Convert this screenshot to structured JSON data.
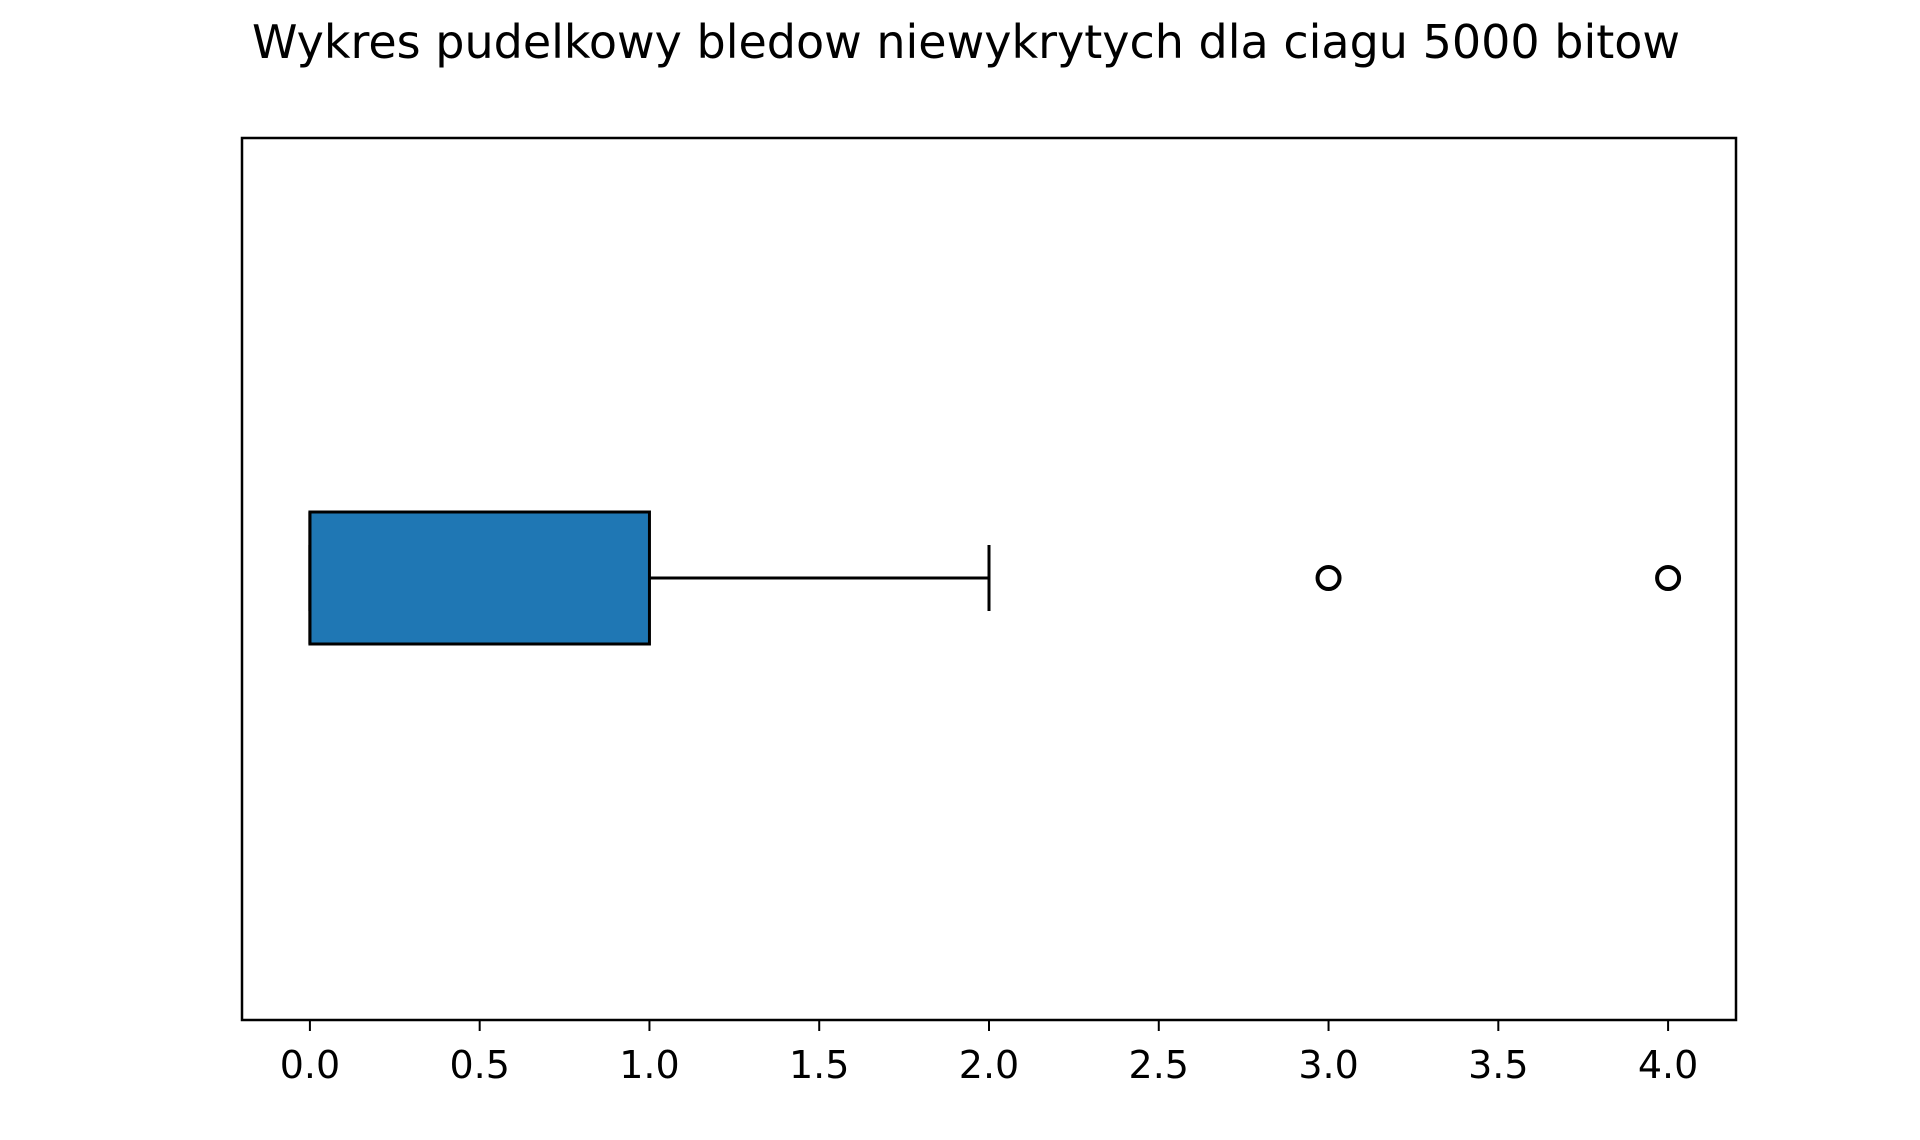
{
  "chart_data": {
    "type": "boxplot",
    "orientation": "horizontal",
    "title": "Wykres pudelkowy bledow niewykrytych dla ciagu 5000 bitow",
    "xlabel": "",
    "ylabel": "",
    "xlim": [
      -0.2,
      4.2
    ],
    "xticks": [
      0.0,
      0.5,
      1.0,
      1.5,
      2.0,
      2.5,
      3.0,
      3.5,
      4.0
    ],
    "xtick_labels": [
      "0.0",
      "0.5",
      "1.0",
      "1.5",
      "2.0",
      "2.5",
      "3.0",
      "3.5",
      "4.0"
    ],
    "grid": false,
    "legend": "none",
    "box": {
      "whisker_low": 0,
      "q1": 0,
      "median": 0,
      "q3": 1,
      "whisker_high": 2,
      "outliers": [
        3,
        4
      ]
    },
    "colors": {
      "box_fill": "#1f77b4",
      "edge": "#000000"
    }
  }
}
